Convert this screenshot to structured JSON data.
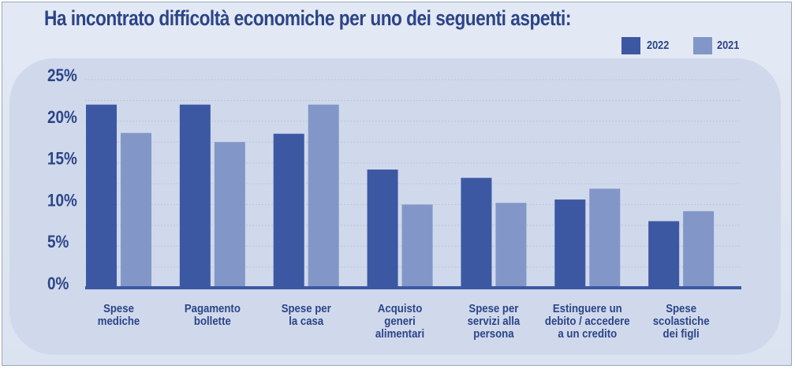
{
  "title": "Ha incontrato difficoltà economiche per uno dei seguenti aspetti:",
  "colors": {
    "s2022": "#3d58a3",
    "s2021": "#8297c8",
    "text": "#2c4488",
    "axis": "#3d58a3",
    "grid": "#b9c6df"
  },
  "legend": [
    {
      "label": "2022",
      "color": "#3d58a3"
    },
    {
      "label": "2021",
      "color": "#8297c8"
    }
  ],
  "chart_data": {
    "type": "bar",
    "title": "Ha incontrato difficoltà economiche per uno dei seguenti aspetti:",
    "categories": [
      [
        "Spese",
        "mediche"
      ],
      [
        "Pagamento",
        "bollette"
      ],
      [
        "Spese per",
        "la casa"
      ],
      [
        "Acquisto",
        "generi",
        "alimentari"
      ],
      [
        "Spese per",
        "servizi alla",
        "persona"
      ],
      [
        "Estinguere un",
        "debito / accedere",
        "a un credito"
      ],
      [
        "Spese",
        "scolastiche",
        "dei figli"
      ]
    ],
    "series": [
      {
        "name": "2022",
        "values": [
          22,
          22,
          18.5,
          14.2,
          13.2,
          10.6,
          8
        ]
      },
      {
        "name": "2021",
        "values": [
          18.6,
          17.5,
          22,
          10,
          10.2,
          11.9,
          9.2
        ]
      }
    ],
    "yticks": [
      "0%",
      "5%",
      "10%",
      "15%",
      "20%",
      "25%"
    ],
    "ylim": [
      0,
      25
    ],
    "grid": true,
    "legend_position": "top-right"
  }
}
